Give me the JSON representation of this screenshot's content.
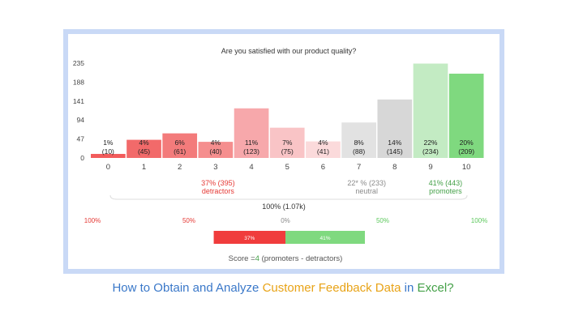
{
  "chart_data": {
    "type": "bar",
    "title": "Are you satisfied with our product quality?",
    "categories": [
      "0",
      "1",
      "2",
      "3",
      "4",
      "5",
      "6",
      "7",
      "8",
      "9",
      "10"
    ],
    "values": [
      10,
      45,
      61,
      40,
      123,
      75,
      41,
      88,
      145,
      234,
      209
    ],
    "percent_labels": [
      "1%",
      "4%",
      "6%",
      "4%",
      "11%",
      "7%",
      "4%",
      "8%",
      "14%",
      "22%",
      "20%"
    ],
    "count_labels": [
      "(10)",
      "(45)",
      "(61)",
      "(40)",
      "(123)",
      "(75)",
      "(41)",
      "(88)",
      "(145)",
      "(234)",
      "(209)"
    ],
    "yticks": [
      0,
      47,
      94,
      141,
      188,
      235
    ],
    "ylim": [
      0,
      235
    ],
    "grid": false,
    "bar_colors": [
      "#f25b5b",
      "#f26a6a",
      "#f37b7b",
      "#f58e8e",
      "#f7a8ab",
      "#f9c4c6",
      "#fbdadb",
      "#e2e2e2",
      "#d7d7d7",
      "#c3ebc3",
      "#7fd97f"
    ],
    "groups": [
      {
        "value": "37% (395)",
        "label": "detractors",
        "color": "#e53935"
      },
      {
        "value": "22* % (233)",
        "label": "neutral",
        "color": "#8a8a8a"
      },
      {
        "value": "41% (443)",
        "label": "promoters",
        "color": "#43a047"
      }
    ],
    "total_label": "100% (1.07k)",
    "scale": {
      "labels": [
        "100%",
        "50%",
        "0%",
        "50%",
        "100%"
      ],
      "colors": [
        "#e53935",
        "#e53935",
        "#8a8a8a",
        "#5cc85c",
        "#5cc85c"
      ]
    },
    "nps_bar": {
      "detractors_label": "37%",
      "promoters_label": "41%",
      "detractors_fraction": 0.37,
      "promoters_fraction": 0.41,
      "detractors_color": "#f03c3c",
      "promoters_color": "#7fd97f"
    },
    "score": {
      "prefix": "Score =",
      "value": "4",
      "suffix": "(promoters - detractors)",
      "value_color": "#43a047"
    }
  },
  "footer": {
    "parts": [
      {
        "text": "How to Obtain and Analyze ",
        "color": "#3a78c9"
      },
      {
        "text": "Customer Feedback Data",
        "color": "#e8a317"
      },
      {
        "text": " in ",
        "color": "#3a78c9"
      },
      {
        "text": "Excel?",
        "color": "#43a047"
      }
    ]
  }
}
